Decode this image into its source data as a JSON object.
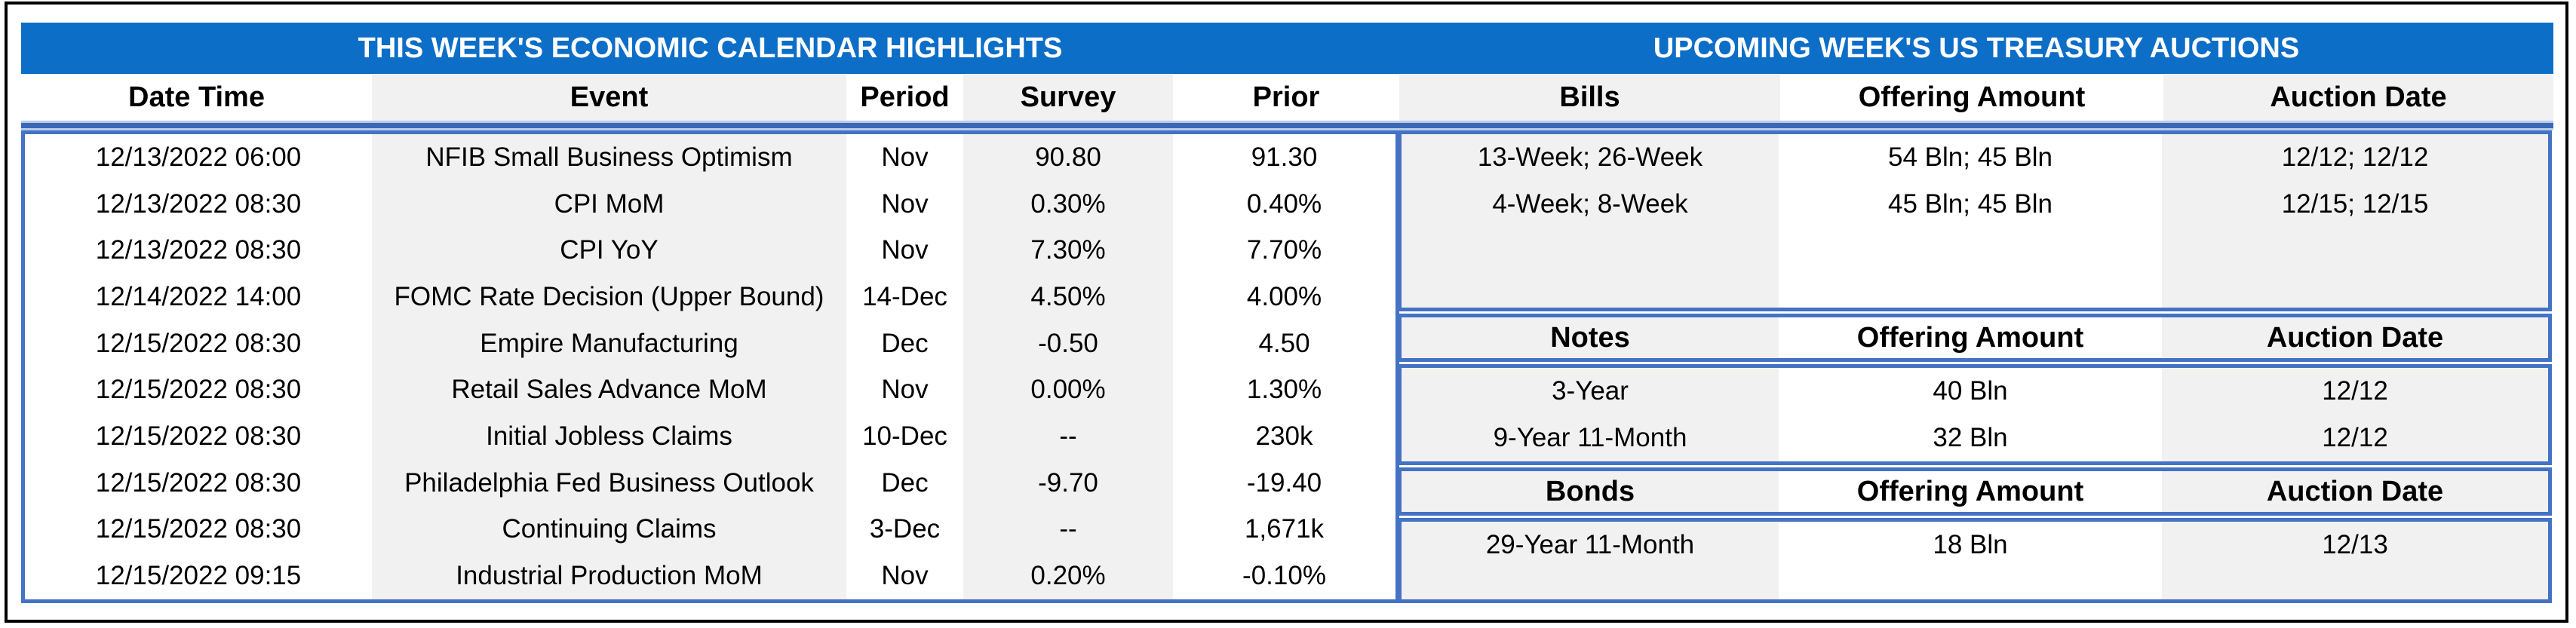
{
  "titles": {
    "calendar": "THIS WEEK'S ECONOMIC CALENDAR HIGHLIGHTS",
    "auctions": "UPCOMING WEEK'S US TREASURY AUCTIONS"
  },
  "header_row": [
    "Date Time",
    "Event",
    "Period",
    "Survey",
    "Prior",
    "Bills",
    "Offering Amount",
    "Auction Date"
  ],
  "calendar": {
    "rows": [
      {
        "date": "12/13/2022 06:00",
        "event": "NFIB Small Business Optimism",
        "period": "Nov",
        "survey": "90.80",
        "prior": "91.30"
      },
      {
        "date": "12/13/2022 08:30",
        "event": "CPI MoM",
        "period": "Nov",
        "survey": "0.30%",
        "prior": "0.40%"
      },
      {
        "date": "12/13/2022 08:30",
        "event": "CPI YoY",
        "period": "Nov",
        "survey": "7.30%",
        "prior": "7.70%"
      },
      {
        "date": "12/14/2022 14:00",
        "event": "FOMC Rate Decision (Upper Bound)",
        "period": "14-Dec",
        "survey": "4.50%",
        "prior": "4.00%"
      },
      {
        "date": "12/15/2022 08:30",
        "event": "Empire Manufacturing",
        "period": "Dec",
        "survey": "-0.50",
        "prior": "4.50"
      },
      {
        "date": "12/15/2022 08:30",
        "event": "Retail Sales Advance MoM",
        "period": "Nov",
        "survey": "0.00%",
        "prior": "1.30%"
      },
      {
        "date": "12/15/2022 08:30",
        "event": "Initial Jobless Claims",
        "period": "10-Dec",
        "survey": "--",
        "prior": "230k"
      },
      {
        "date": "12/15/2022 08:30",
        "event": "Philadelphia Fed Business Outlook",
        "period": "Dec",
        "survey": "-9.70",
        "prior": "-19.40"
      },
      {
        "date": "12/15/2022 08:30",
        "event": "Continuing Claims",
        "period": "3-Dec",
        "survey": "--",
        "prior": "1,671k"
      },
      {
        "date": "12/15/2022 09:15",
        "event": "Industrial Production MoM",
        "period": "Nov",
        "survey": "0.20%",
        "prior": "-0.10%"
      }
    ]
  },
  "auctions": {
    "bills": {
      "rows": [
        {
          "security": "13-Week; 26-Week",
          "offering": "54 Bln; 45 Bln",
          "auction": "12/12; 12/12"
        },
        {
          "security": "4-Week; 8-Week",
          "offering": "45 Bln; 45 Bln",
          "auction": "12/15; 12/15"
        }
      ]
    },
    "notes": {
      "headers": [
        "Notes",
        "Offering Amount",
        "Auction Date"
      ],
      "rows": [
        {
          "security": "3-Year",
          "offering": "40 Bln",
          "auction": "12/12"
        },
        {
          "security": "9-Year 11-Month",
          "offering": "32 Bln",
          "auction": "12/12"
        }
      ]
    },
    "bonds": {
      "headers": [
        "Bonds",
        "Offering Amount",
        "Auction Date"
      ],
      "rows": [
        {
          "security": "29-Year 11-Month",
          "offering": "18 Bln",
          "auction": "12/13"
        }
      ]
    }
  },
  "colors": {
    "band": "#0d6ec7",
    "box_border": "#4472c4",
    "stripe": "#f1f1f1",
    "divider": "#3a67b8",
    "divider_edge": "#b8cce4",
    "frame": "#000000"
  }
}
